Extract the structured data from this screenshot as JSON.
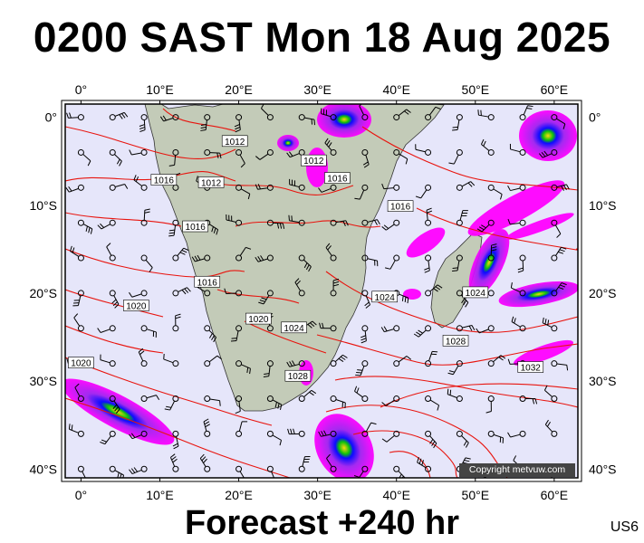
{
  "title": "0200 SAST Mon 18 Aug 2025",
  "footer": "Forecast +240 hr",
  "code": "US6",
  "copyright": "Copyright metvuw.com",
  "map": {
    "lon_range": [
      -2,
      63
    ],
    "lat_range": [
      -41,
      1.5
    ],
    "lon_ticks": [
      {
        "value": 0,
        "label": "0°"
      },
      {
        "value": 10,
        "label": "10°E"
      },
      {
        "value": 20,
        "label": "20°E"
      },
      {
        "value": 30,
        "label": "30°E"
      },
      {
        "value": 40,
        "label": "40°E"
      },
      {
        "value": 50,
        "label": "50°E"
      },
      {
        "value": 60,
        "label": "60°E"
      }
    ],
    "lat_ticks": [
      {
        "value": 0,
        "label": "0°"
      },
      {
        "value": -10,
        "label": "10°S"
      },
      {
        "value": -20,
        "label": "20°S"
      },
      {
        "value": -30,
        "label": "30°S"
      },
      {
        "value": -40,
        "label": "40°S"
      }
    ],
    "isobar_labels": [
      {
        "text": "1012",
        "lon": 19.5,
        "lat": -2.8
      },
      {
        "text": "1012",
        "lon": 29.5,
        "lat": -5.0
      },
      {
        "text": "1016",
        "lon": 32.5,
        "lat": -7.0
      },
      {
        "text": "1012",
        "lon": 16.5,
        "lat": -7.5
      },
      {
        "text": "1016",
        "lon": 10.5,
        "lat": -7.2
      },
      {
        "text": "1016",
        "lon": 14.5,
        "lat": -12.5
      },
      {
        "text": "1016",
        "lon": 40.5,
        "lat": -10.2
      },
      {
        "text": "1016",
        "lon": 16.0,
        "lat": -18.8
      },
      {
        "text": "1020",
        "lon": 7.0,
        "lat": -21.5
      },
      {
        "text": "1020",
        "lon": 22.5,
        "lat": -23.0
      },
      {
        "text": "1024",
        "lon": 27.0,
        "lat": -24.0
      },
      {
        "text": "1024",
        "lon": 38.5,
        "lat": -20.5
      },
      {
        "text": "1024",
        "lon": 50.0,
        "lat": -20.0
      },
      {
        "text": "1028",
        "lon": 27.5,
        "lat": -29.5
      },
      {
        "text": "1028",
        "lon": 47.5,
        "lat": -25.5
      },
      {
        "text": "1032",
        "lon": 57.0,
        "lat": -28.5
      },
      {
        "text": "1020",
        "lon": 0.0,
        "lat": -28.0
      }
    ],
    "colors": {
      "ocean": "#e6e6fa",
      "land": "#c3cbb8",
      "isobar": "#e8140e",
      "precip_light": "#ff00ff",
      "precip_mid": "#a020f0",
      "precip_heavy": "#0000ff",
      "precip_extreme": "#ffd700"
    }
  }
}
